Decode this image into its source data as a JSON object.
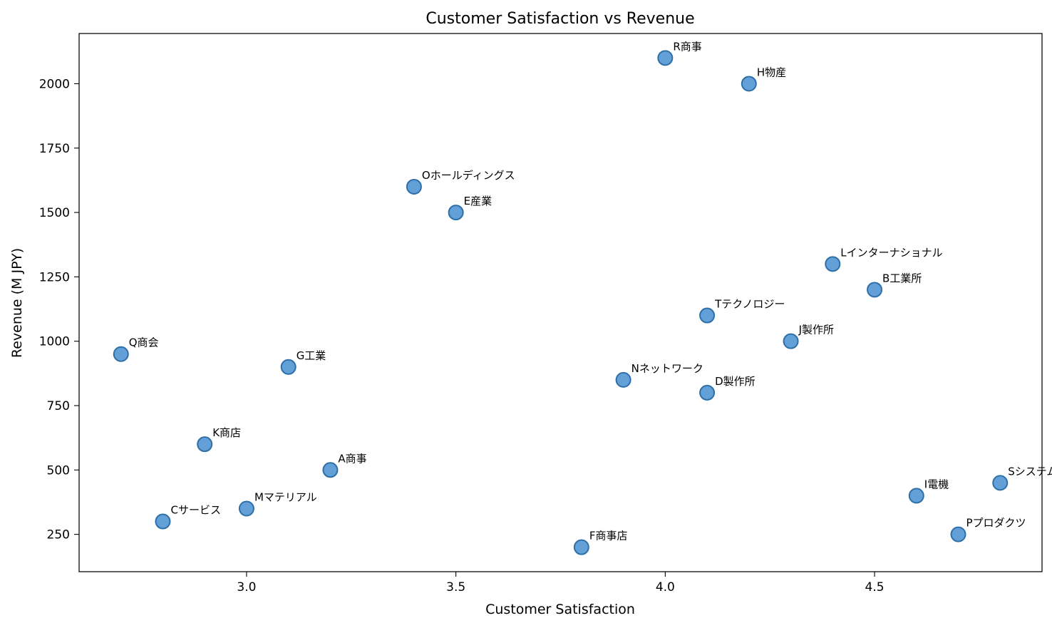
{
  "chart_data": {
    "type": "scatter",
    "title": "Customer Satisfaction vs Revenue",
    "xlabel": "Customer Satisfaction",
    "ylabel": "Revenue (M JPY)",
    "xlim": [
      2.6,
      4.9
    ],
    "ylim": [
      105,
      2195
    ],
    "xticks": [
      3.0,
      3.5,
      4.0,
      4.5
    ],
    "xtick_labels": [
      "3.0",
      "3.5",
      "4.0",
      "4.5"
    ],
    "yticks": [
      250,
      500,
      750,
      1000,
      1250,
      1500,
      1750,
      2000
    ],
    "ytick_labels": [
      "250",
      "500",
      "750",
      "1000",
      "1250",
      "1500",
      "1750",
      "2000"
    ],
    "grid": false,
    "legend": "none",
    "marker_color": "#5b9bd5",
    "marker_edge_color": "#2f6fa8",
    "points": [
      {
        "label": "R商事",
        "x": 4.0,
        "y": 2100
      },
      {
        "label": "H物産",
        "x": 4.2,
        "y": 2000
      },
      {
        "label": "Oホールディングス",
        "x": 3.4,
        "y": 1600
      },
      {
        "label": "E産業",
        "x": 3.5,
        "y": 1500
      },
      {
        "label": "Lインターナショナル",
        "x": 4.4,
        "y": 1300
      },
      {
        "label": "B工業所",
        "x": 4.5,
        "y": 1200
      },
      {
        "label": "Tテクノロジー",
        "x": 4.1,
        "y": 1100
      },
      {
        "label": "J製作所",
        "x": 4.3,
        "y": 1000
      },
      {
        "label": "Q商会",
        "x": 2.7,
        "y": 950
      },
      {
        "label": "G工業",
        "x": 3.1,
        "y": 900
      },
      {
        "label": "Nネットワーク",
        "x": 3.9,
        "y": 850
      },
      {
        "label": "D製作所",
        "x": 4.1,
        "y": 800
      },
      {
        "label": "K商店",
        "x": 2.9,
        "y": 600
      },
      {
        "label": "A商事",
        "x": 3.2,
        "y": 500
      },
      {
        "label": "Sシステムズ",
        "x": 4.8,
        "y": 450
      },
      {
        "label": "I電機",
        "x": 4.6,
        "y": 400
      },
      {
        "label": "Mマテリアル",
        "x": 3.0,
        "y": 350
      },
      {
        "label": "Cサービス",
        "x": 2.8,
        "y": 300
      },
      {
        "label": "Pプロダクツ",
        "x": 4.7,
        "y": 250
      },
      {
        "label": "F商事店",
        "x": 3.8,
        "y": 200
      }
    ]
  }
}
